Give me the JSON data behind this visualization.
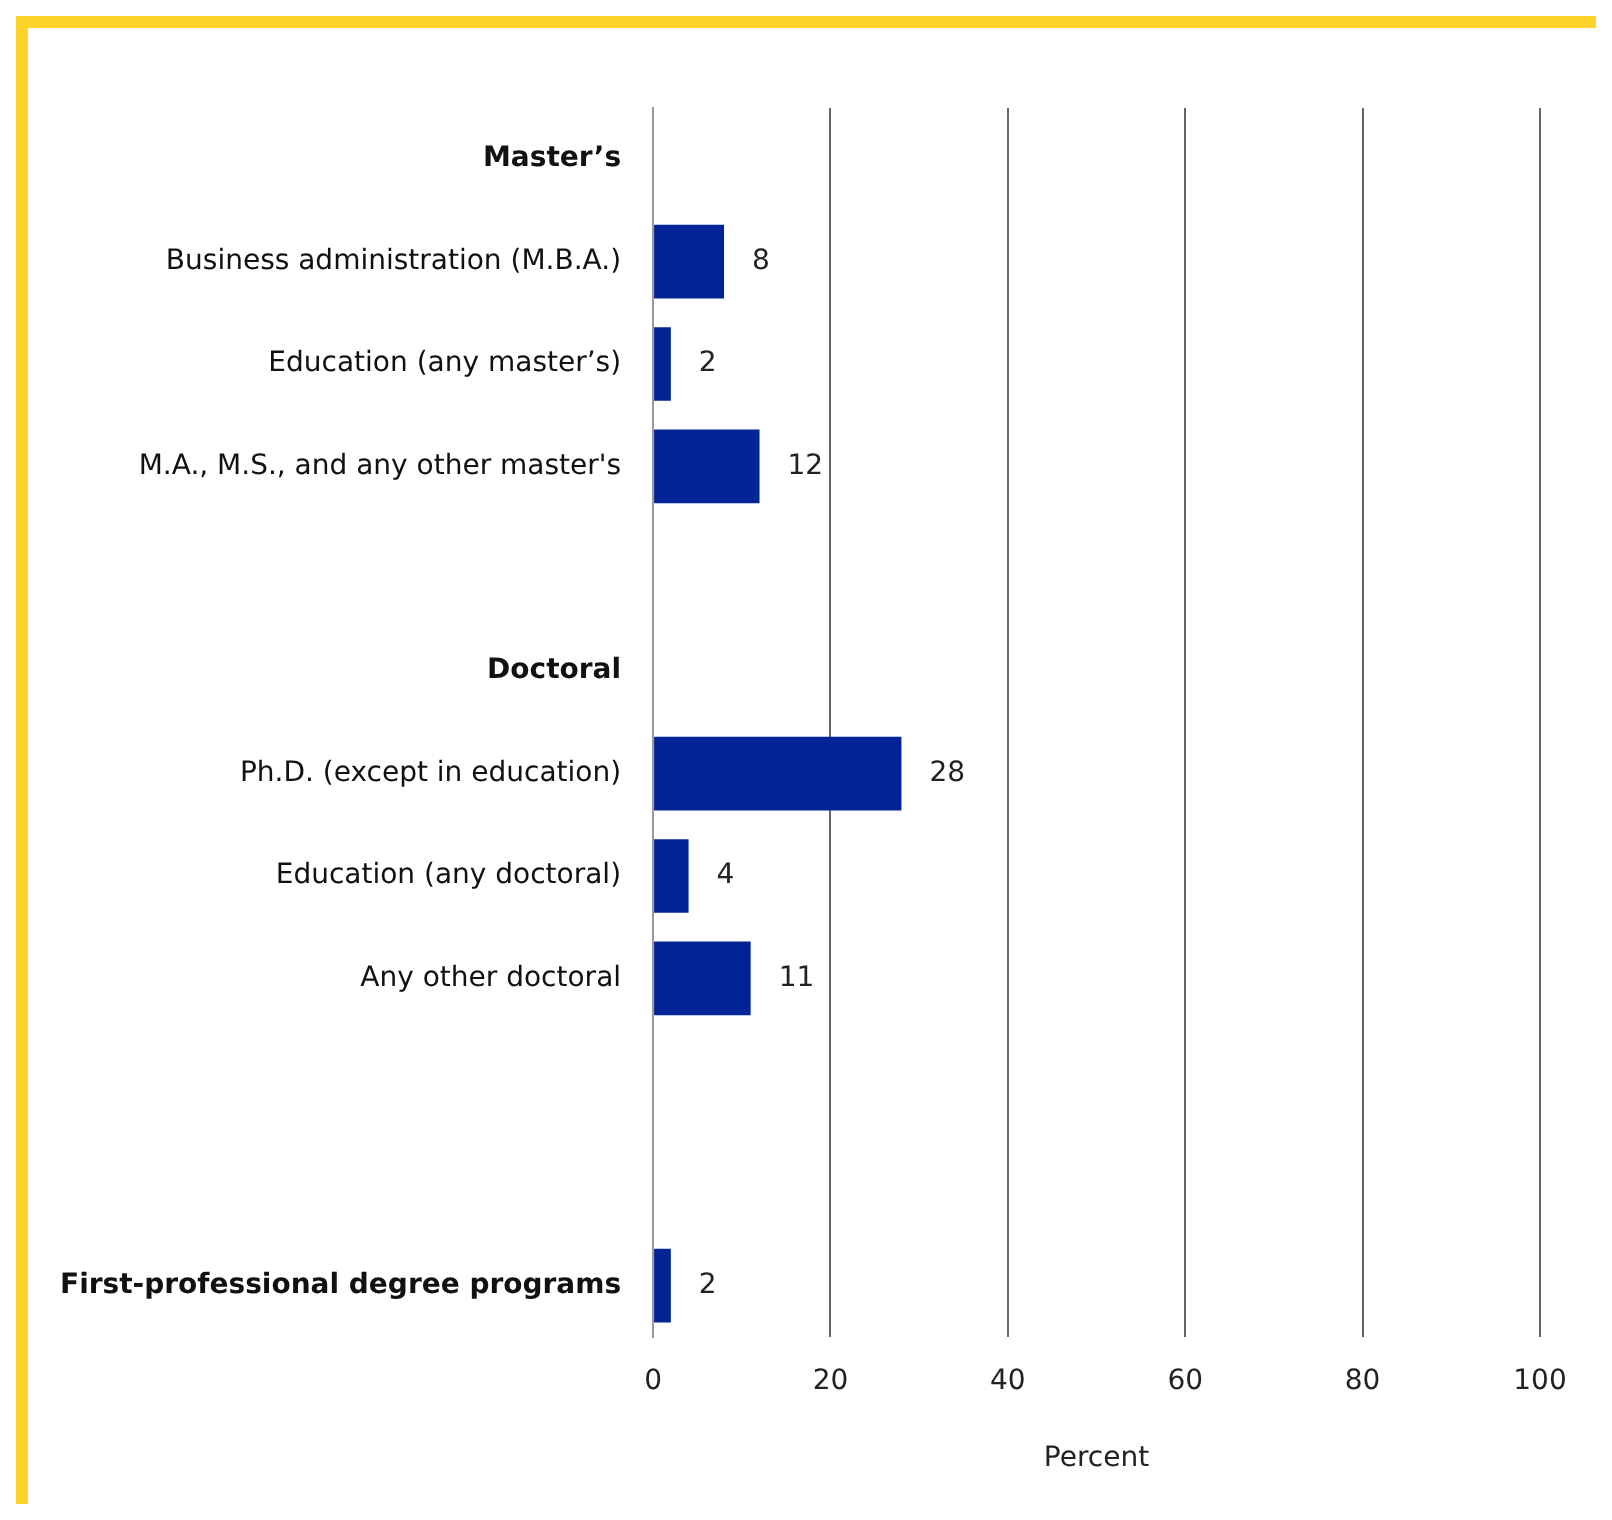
{
  "chart_data": {
    "type": "bar",
    "orientation": "horizontal",
    "xlabel": "Percent",
    "categories": [
      "Master’s",
      "Business administration (M.B.A.)",
      "Education (any master’s)",
      "M.A., M.S., and any other master's",
      null,
      "Doctoral",
      "Ph.D. (except in education)",
      "Education (any doctoral)",
      "Any other doctoral",
      null,
      null,
      "First-professional degree programs"
    ],
    "values": [
      null,
      8,
      2,
      12,
      null,
      null,
      28,
      4,
      11,
      null,
      null,
      2
    ],
    "color": "#002395",
    "xlim": [
      0,
      100
    ],
    "xticks": [
      0,
      20,
      40,
      60,
      80,
      100
    ],
    "grid": "x",
    "data_labels": true,
    "legend": false
  }
}
